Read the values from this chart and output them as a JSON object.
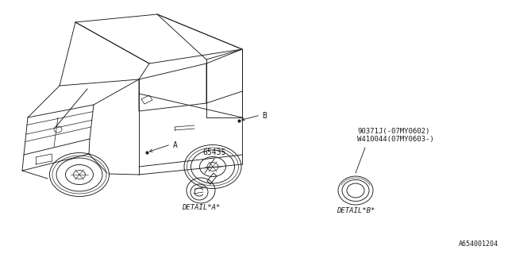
{
  "background_color": "#ffffff",
  "line_color": "#1a1a1a",
  "text_color": "#1a1a1a",
  "fig_width": 6.4,
  "fig_height": 3.2,
  "dpi": 100,
  "part_number_a": "65435",
  "part_number_b_line1": "90371J(-07MY0602)",
  "part_number_b_line2": "W410044(07MY0603-)",
  "detail_a_label": "DETAIL*A*",
  "detail_b_label": "DETAIL*B*",
  "label_a": "A",
  "label_b": "B",
  "diagram_id": "A654001204"
}
